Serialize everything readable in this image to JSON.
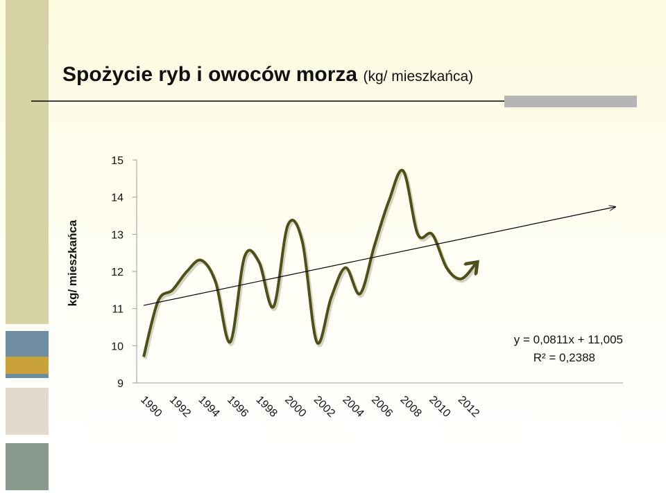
{
  "chart_data": {
    "type": "line",
    "title": "Spożycie ryb i owoców morza",
    "subtitle": "(kg/ mieszkańca)",
    "y_label": "kg/ mieszkańca",
    "categories": [
      "1990",
      null,
      "1992",
      null,
      "1994",
      null,
      "1996",
      null,
      "1998",
      null,
      "2000",
      null,
      "2002",
      null,
      "2004",
      null,
      "2006",
      null,
      "2008",
      null,
      "2010",
      null,
      "2012",
      null
    ],
    "series": [
      {
        "name": "kg/ mieszkańca",
        "color": "#4f4f1a",
        "values": [
          9.7,
          11.2,
          11.5,
          12.0,
          12.3,
          11.7,
          10.1,
          12.4,
          12.25,
          11.05,
          13.25,
          12.8,
          10.1,
          11.3,
          12.1,
          11.4,
          12.7,
          13.9,
          14.7,
          13.0,
          13.0,
          12.1,
          11.8,
          12.2
        ]
      }
    ],
    "ylim": [
      9,
      15
    ],
    "yticks": [
      9,
      10,
      11,
      12,
      13,
      14,
      15
    ],
    "grid": false,
    "trendline": {
      "slope": 0.0811,
      "intercept": 11.005,
      "color": "#000000",
      "equation": "y = 0,0811x + 11,005",
      "r2": "R² = 0,2388"
    }
  }
}
